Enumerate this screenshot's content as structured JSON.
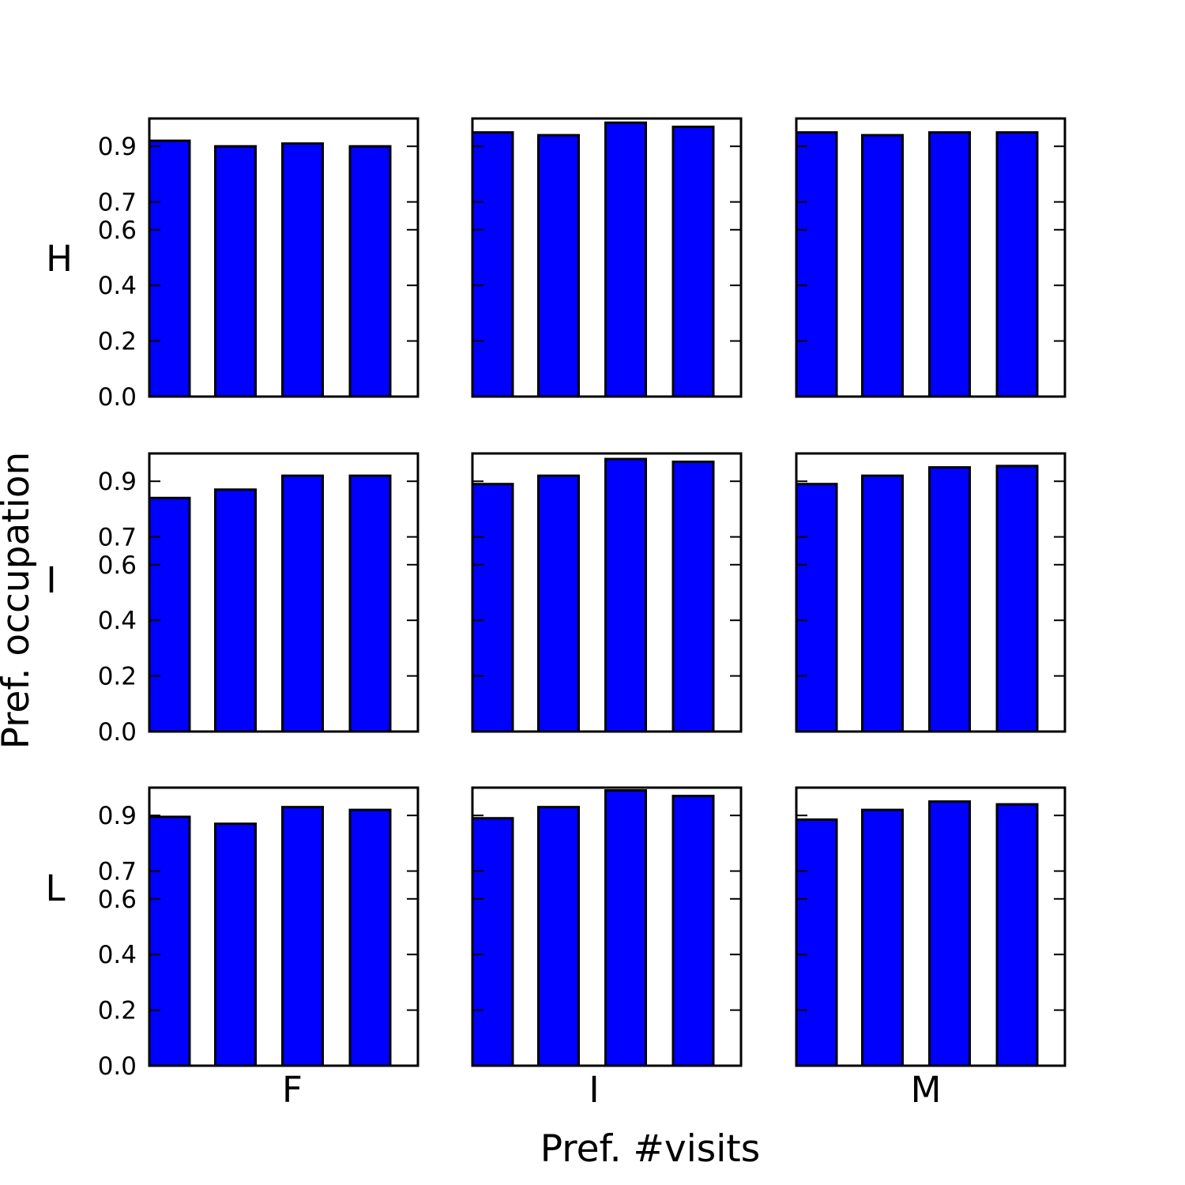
{
  "figure": {
    "xlabel": "Pref. #visits",
    "ylabel": "Pref. occupation"
  },
  "row_labels": [
    "H",
    "I",
    "L"
  ],
  "col_labels": [
    "F",
    "I",
    "M"
  ],
  "colors": {
    "bar_fill": "#0000ff",
    "edge": "#000000",
    "background": "#ffffff"
  },
  "chart_data": {
    "type": "bar",
    "layout": "3x3 grid",
    "ylim": [
      0.0,
      1.0
    ],
    "yticks": [
      0.0,
      0.2,
      0.4,
      0.6,
      0.7,
      0.9
    ],
    "ytick_labels": [
      "0.0",
      "0.2",
      "0.4",
      "0.6",
      "0.7",
      "0.9"
    ],
    "bars_per_panel": 4,
    "grid": false,
    "panels": [
      {
        "row": "H",
        "col": "F",
        "values": [
          0.92,
          0.9,
          0.91,
          0.9
        ]
      },
      {
        "row": "H",
        "col": "I",
        "values": [
          0.95,
          0.94,
          0.985,
          0.97
        ]
      },
      {
        "row": "H",
        "col": "M",
        "values": [
          0.95,
          0.94,
          0.95,
          0.95
        ]
      },
      {
        "row": "I",
        "col": "F",
        "values": [
          0.84,
          0.87,
          0.92,
          0.92
        ]
      },
      {
        "row": "I",
        "col": "I",
        "values": [
          0.89,
          0.92,
          0.98,
          0.97
        ]
      },
      {
        "row": "I",
        "col": "M",
        "values": [
          0.89,
          0.92,
          0.95,
          0.955
        ]
      },
      {
        "row": "L",
        "col": "F",
        "values": [
          0.895,
          0.87,
          0.93,
          0.92
        ]
      },
      {
        "row": "L",
        "col": "I",
        "values": [
          0.89,
          0.93,
          0.99,
          0.97
        ]
      },
      {
        "row": "L",
        "col": "M",
        "values": [
          0.885,
          0.92,
          0.95,
          0.94
        ]
      }
    ]
  }
}
